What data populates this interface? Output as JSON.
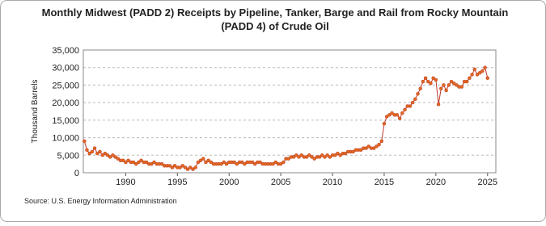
{
  "chart_data": {
    "type": "line",
    "title": [
      "Monthly Midwest (PADD 2) Receipts by Pipeline, Tanker, Barge and Rail from Rocky Mountain",
      "(PADD 4) of Crude Oil"
    ],
    "y_label": "Thousand Barrels",
    "source": "Source: U.S. Energy Information Administration",
    "xlim": [
      1985.9,
      2025.8
    ],
    "xticks": [
      1990,
      1995,
      2000,
      2005,
      2010,
      2015,
      2020,
      2025
    ],
    "ylim": [
      0,
      35000
    ],
    "yticks": [
      0,
      {
        "value": 5000,
        "label": "5,000"
      },
      {
        "value": 10000,
        "label": "10,000"
      },
      {
        "value": 15000,
        "label": "15,000"
      },
      {
        "value": 20000,
        "label": "20,000"
      },
      {
        "value": 25000,
        "label": "25,000"
      },
      {
        "value": 30000,
        "label": "30,000"
      },
      {
        "value": 35000,
        "label": "35,000"
      }
    ],
    "grid": true,
    "series": [
      {
        "color": "#c0392b",
        "x": [
          1986,
          1986.25,
          1986.5,
          1986.75,
          1987,
          1987.25,
          1987.5,
          1987.75,
          1988,
          1988.25,
          1988.5,
          1988.75,
          1989,
          1989.25,
          1989.5,
          1989.75,
          1990,
          1990.25,
          1990.5,
          1990.75,
          1991,
          1991.25,
          1991.5,
          1991.75,
          1992,
          1992.25,
          1992.5,
          1992.75,
          1993,
          1993.25,
          1993.5,
          1993.75,
          1994,
          1994.25,
          1994.5,
          1994.75,
          1995,
          1995.25,
          1995.5,
          1995.75,
          1996,
          1996.25,
          1996.5,
          1996.75,
          1997,
          1997.25,
          1997.5,
          1997.75,
          1998,
          1998.25,
          1998.5,
          1998.75,
          1999,
          1999.25,
          1999.5,
          1999.75,
          2000,
          2000.25,
          2000.5,
          2000.75,
          2001,
          2001.25,
          2001.5,
          2001.75,
          2002,
          2002.25,
          2002.5,
          2002.75,
          2003,
          2003.25,
          2003.5,
          2003.75,
          2004,
          2004.25,
          2004.5,
          2004.75,
          2005,
          2005.25,
          2005.5,
          2005.75,
          2006,
          2006.25,
          2006.5,
          2006.75,
          2007,
          2007.25,
          2007.5,
          2007.75,
          2008,
          2008.25,
          2008.5,
          2008.75,
          2009,
          2009.25,
          2009.5,
          2009.75,
          2010,
          2010.25,
          2010.5,
          2010.75,
          2011,
          2011.25,
          2011.5,
          2011.75,
          2012,
          2012.25,
          2012.5,
          2012.75,
          2013,
          2013.25,
          2013.5,
          2013.75,
          2014,
          2014.25,
          2014.5,
          2014.75,
          2015,
          2015.25,
          2015.5,
          2015.75,
          2016,
          2016.25,
          2016.5,
          2016.75,
          2017,
          2017.25,
          2017.5,
          2017.75,
          2018,
          2018.25,
          2018.5,
          2018.75,
          2019,
          2019.25,
          2019.5,
          2019.75,
          2020,
          2020.25,
          2020.5,
          2020.75,
          2021,
          2021.25,
          2021.5,
          2021.75,
          2022,
          2022.25,
          2022.5,
          2022.75,
          2023,
          2023.25,
          2023.5,
          2023.75,
          2024,
          2024.25,
          2024.5,
          2024.75,
          2025
        ],
        "values": [
          9000,
          6500,
          5500,
          6000,
          7000,
          5500,
          6000,
          5000,
          5500,
          5000,
          4500,
          5000,
          4500,
          4000,
          3500,
          3500,
          3000,
          3500,
          3000,
          3000,
          2500,
          3000,
          3500,
          3000,
          3000,
          2500,
          2500,
          3000,
          2500,
          2500,
          2500,
          2000,
          2000,
          2000,
          1500,
          2000,
          1500,
          1500,
          2000,
          1500,
          1000,
          1500,
          1000,
          1500,
          3000,
          3500,
          4000,
          3000,
          3500,
          3000,
          2500,
          2500,
          2500,
          2500,
          3000,
          2500,
          3000,
          3000,
          3000,
          2500,
          3000,
          3000,
          2500,
          3000,
          3000,
          3000,
          2500,
          3000,
          3000,
          2500,
          2500,
          2500,
          2500,
          2500,
          3000,
          2500,
          2500,
          3000,
          4000,
          4000,
          4500,
          4500,
          5000,
          4500,
          5000,
          4500,
          4500,
          5000,
          4500,
          4000,
          4500,
          4500,
          5000,
          4500,
          5000,
          4500,
          5000,
          5000,
          5500,
          5000,
          5500,
          5500,
          6000,
          6000,
          6000,
          6500,
          6500,
          6500,
          7000,
          7000,
          7500,
          7000,
          7000,
          7500,
          8000,
          9000,
          14000,
          16000,
          16500,
          17000,
          16500,
          16500,
          15500,
          17000,
          18000,
          19000,
          19000,
          20000,
          21000,
          22500,
          24000,
          26000,
          27000,
          26000,
          25500,
          27000,
          26500,
          19500,
          24000,
          25000,
          23500,
          25000,
          26000,
          25500,
          25000,
          24500,
          24500,
          26000,
          26000,
          27000,
          28000,
          29500,
          28000,
          28500,
          29000,
          30000,
          27000
        ]
      }
    ]
  }
}
